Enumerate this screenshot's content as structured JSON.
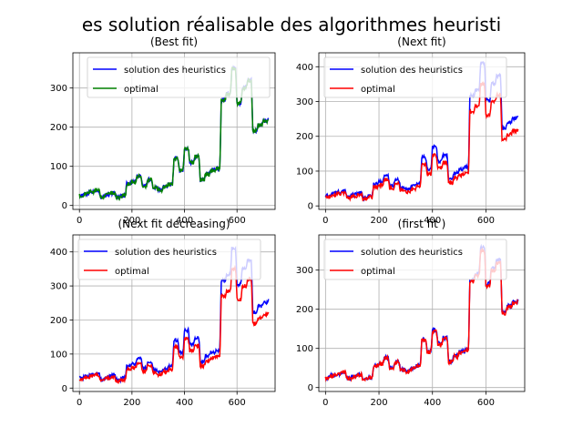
{
  "figure": {
    "suptitle": "es solution réalisable des algorithmes heuristi"
  },
  "colors": {
    "heuristic_blue": "#0000ff",
    "optimal_green": "#008000",
    "optimal_red": "#ff0000",
    "grid": "#b0b0b0",
    "legend_border": "#cccccc"
  },
  "chart_data": [
    {
      "type": "line",
      "title": "(Best fit)",
      "xlabel": "",
      "ylabel": "",
      "xlim": [
        -25,
        745
      ],
      "ylim": [
        -10,
        390
      ],
      "xticks": [
        0,
        200,
        400,
        600
      ],
      "yticks": [
        0,
        100,
        200,
        300
      ],
      "grid": true,
      "legend_position": "top-right",
      "series": [
        {
          "name": "solution des heuristics",
          "color": "#0000ff",
          "scale": 1.0,
          "offset": 0
        },
        {
          "name": "optimal",
          "color": "#008000",
          "scale": 1.0,
          "offset": 0
        }
      ]
    },
    {
      "type": "line",
      "title": "(Next fit)",
      "xlabel": "",
      "ylabel": "",
      "xlim": [
        -25,
        745
      ],
      "ylim": [
        -10,
        440
      ],
      "xticks": [
        0,
        200,
        400,
        600
      ],
      "yticks": [
        0,
        100,
        200,
        300,
        400
      ],
      "grid": true,
      "legend_position": "top-left",
      "series": [
        {
          "name": "solution des heuristics",
          "color": "#0000ff",
          "scale": 1.17,
          "offset": 0
        },
        {
          "name": "optimal",
          "color": "#ff0000",
          "scale": 1.0,
          "offset": 0
        }
      ]
    },
    {
      "type": "line",
      "title": "(Next fit decreasing)",
      "xlabel": "",
      "ylabel": "",
      "xlim": [
        -25,
        745
      ],
      "ylim": [
        -10,
        450
      ],
      "xticks": [
        0,
        200,
        400,
        600
      ],
      "yticks": [
        0,
        100,
        200,
        300,
        400
      ],
      "grid": true,
      "legend_position": "top-left",
      "series": [
        {
          "name": "solution des heuristics",
          "color": "#0000ff",
          "scale": 1.17,
          "offset": 0
        },
        {
          "name": "optimal",
          "color": "#ff0000",
          "scale": 1.0,
          "offset": 0
        }
      ]
    },
    {
      "type": "line",
      "title": "(first fit )",
      "xlabel": "",
      "ylabel": "",
      "xlim": [
        -25,
        745
      ],
      "ylim": [
        -10,
        390
      ],
      "xticks": [
        0,
        200,
        400,
        600
      ],
      "yticks": [
        0,
        100,
        200,
        300
      ],
      "grid": true,
      "legend_position": "top-left",
      "series": [
        {
          "name": "solution des heuristics",
          "color": "#0000ff",
          "scale": 1.02,
          "offset": 0
        },
        {
          "name": "optimal",
          "color": "#ff0000",
          "scale": 1.0,
          "offset": 0
        }
      ]
    }
  ],
  "base_curve": {
    "x": [
      0,
      20,
      40,
      60,
      80,
      100,
      120,
      140,
      160,
      180,
      200,
      220,
      240,
      260,
      280,
      300,
      320,
      340,
      360,
      380,
      400,
      420,
      440,
      460,
      480,
      500,
      520,
      540,
      560,
      580,
      600,
      620,
      640,
      660,
      680,
      700,
      720
    ],
    "y": [
      25,
      30,
      35,
      38,
      22,
      28,
      32,
      20,
      25,
      55,
      60,
      75,
      50,
      65,
      45,
      40,
      48,
      55,
      120,
      90,
      145,
      110,
      125,
      65,
      80,
      90,
      95,
      270,
      285,
      350,
      260,
      300,
      320,
      190,
      205,
      215,
      220
    ]
  }
}
